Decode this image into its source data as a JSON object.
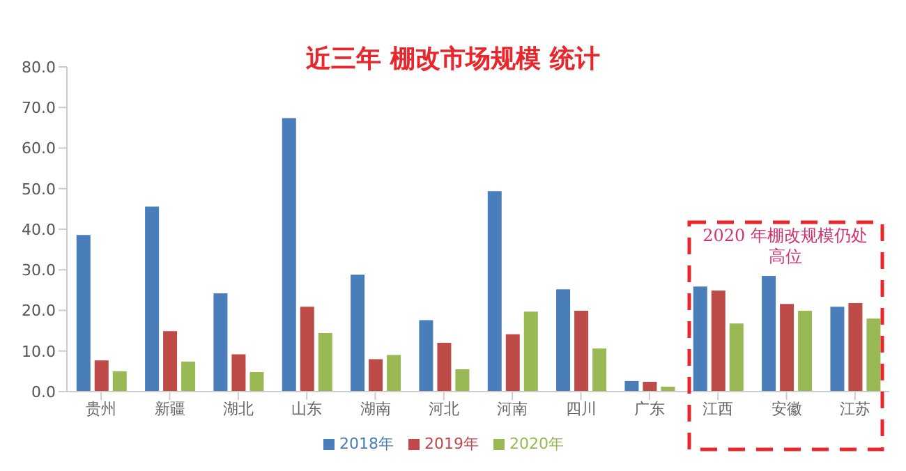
{
  "chart_data": {
    "type": "bar",
    "title": "近三年 棚改市场规模 统计",
    "categories": [
      "贵州",
      "新疆",
      "湖北",
      "山东",
      "湖南",
      "河北",
      "河南",
      "四川",
      "广东",
      "江西",
      "安徽",
      "江苏"
    ],
    "series": [
      {
        "name": "2018年",
        "color": "#4a7ebb",
        "values": [
          38.6,
          45.6,
          24.2,
          67.4,
          28.8,
          17.6,
          49.4,
          25.2,
          2.6,
          25.9,
          28.5,
          20.9
        ]
      },
      {
        "name": "2019年",
        "color": "#be4b48",
        "values": [
          7.7,
          14.9,
          9.2,
          20.9,
          8.0,
          12.0,
          14.1,
          19.9,
          2.4,
          24.9,
          21.6,
          21.8
        ]
      },
      {
        "name": "2020年",
        "color": "#98b954",
        "values": [
          5.0,
          7.4,
          4.8,
          14.4,
          9.0,
          5.5,
          19.7,
          10.6,
          1.2,
          16.8,
          19.9,
          18.0
        ]
      }
    ],
    "ylim": [
      0,
      80
    ],
    "yticks": [
      {
        "value": 0,
        "label": "0.0"
      },
      {
        "value": 10,
        "label": "10.0"
      },
      {
        "value": 20,
        "label": "20.0"
      },
      {
        "value": 30,
        "label": "30.0"
      },
      {
        "value": 40,
        "label": "40.0"
      },
      {
        "value": 50,
        "label": "50.0"
      },
      {
        "value": 60,
        "label": "60.0"
      },
      {
        "value": 70,
        "label": "70.0"
      },
      {
        "value": 80,
        "label": "80.0"
      }
    ],
    "grid": false,
    "legend": "bottom",
    "annotations": [
      "2020 年棚改规模仍处高位"
    ]
  }
}
